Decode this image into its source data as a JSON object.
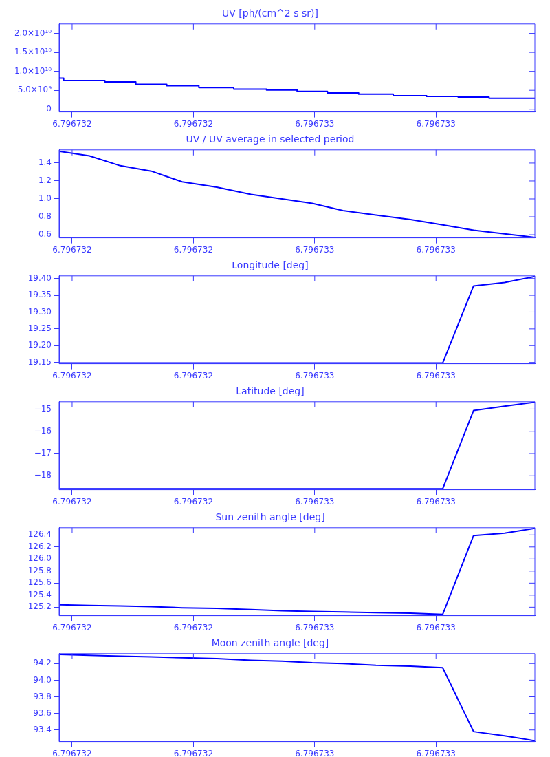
{
  "chart_data": [
    {
      "type": "step",
      "title": "UV [ph/(cm^2 s sr)]",
      "x": [
        6.796731957,
        6.796731972,
        6.796732108,
        6.79673221,
        6.796732312,
        6.796732418,
        6.796732533,
        6.796732641,
        6.796732742,
        6.796732842,
        6.796732945,
        6.796733059,
        6.796733169,
        6.796733273,
        6.796733375,
        6.796733476,
        6.796733526
      ],
      "series": [
        {
          "color": "#0000ff",
          "values": [
            8500000000.0,
            8200000000.0,
            7600000000.0,
            7200000000.0,
            6600000000.0,
            6200000000.0,
            5700000000.0,
            5300000000.0,
            5100000000.0,
            4700000000.0,
            4300000000.0,
            4000000000.0,
            3600000000.0,
            3400000000.0,
            3200000000.0,
            2900000000.0,
            2900000000.0
          ]
        }
      ],
      "xlim": [
        6.796731957,
        6.796733526
      ],
      "xticks": [
        {
          "value": 6.796732,
          "label": "6.796732"
        },
        {
          "value": 6.7967324,
          "label": "6.796732"
        },
        {
          "value": 6.7967328,
          "label": "6.796733"
        },
        {
          "value": 6.7967332,
          "label": "6.796733"
        }
      ],
      "ylim": [
        -700000000.0,
        22500000000.0
      ],
      "yticks": [
        0,
        {
          "value": 5000000000.0,
          "label": "5.0×10⁹"
        },
        {
          "value": 10000000000.0,
          "label": "1.0×10¹⁰"
        },
        {
          "value": 15000000000.0,
          "label": "1.5×10¹⁰"
        },
        {
          "value": 20000000000.0,
          "label": "2.0×10¹⁰"
        }
      ],
      "grid": false,
      "legend": false
    },
    {
      "type": "line",
      "title": "UV / UV average in selected period",
      "x": [
        6.79673196,
        6.796732057,
        6.796732159,
        6.796732261,
        6.796732363,
        6.796732477,
        6.79673259,
        6.796732692,
        6.796732792,
        6.796732893,
        6.796733002,
        6.796733116,
        6.796733222,
        6.796733324,
        6.796733426,
        6.796733526
      ],
      "series": [
        {
          "color": "#0000ff",
          "values": [
            1.53,
            1.48,
            1.37,
            1.31,
            1.19,
            1.13,
            1.05,
            1.0,
            0.95,
            0.87,
            0.82,
            0.77,
            0.71,
            0.65,
            0.61,
            0.57
          ]
        }
      ],
      "xlim": [
        6.796731957,
        6.796733526
      ],
      "xticks": [
        {
          "value": 6.796732,
          "label": "6.796732"
        },
        {
          "value": 6.7967324,
          "label": "6.796732"
        },
        {
          "value": 6.7967328,
          "label": "6.796733"
        },
        {
          "value": 6.7967332,
          "label": "6.796733"
        }
      ],
      "ylim": [
        0.565,
        1.547
      ],
      "yticks": [
        {
          "value": 0.6,
          "label": "0.6"
        },
        {
          "value": 0.8,
          "label": "0.8"
        },
        {
          "value": 1.0,
          "label": "1.0"
        },
        {
          "value": 1.2,
          "label": "1.2"
        },
        {
          "value": 1.4,
          "label": "1.4"
        }
      ],
      "grid": false,
      "legend": false
    },
    {
      "type": "line",
      "title": "Longitude [deg]",
      "x": [
        6.79673196,
        6.796732057,
        6.796732159,
        6.796732261,
        6.796732363,
        6.796732477,
        6.79673259,
        6.796732692,
        6.796732792,
        6.796732893,
        6.796733002,
        6.796733116,
        6.796733222,
        6.796733324,
        6.796733426,
        6.796733526
      ],
      "series": [
        {
          "color": "#0000ff",
          "values": [
            19.148,
            19.148,
            19.148,
            19.148,
            19.148,
            19.148,
            19.148,
            19.148,
            19.148,
            19.148,
            19.148,
            19.148,
            19.148,
            19.378,
            19.388,
            19.406
          ]
        }
      ],
      "xlim": [
        6.796731957,
        6.796733526
      ],
      "xticks": [
        {
          "value": 6.796732,
          "label": "6.796732"
        },
        {
          "value": 6.7967324,
          "label": "6.796732"
        },
        {
          "value": 6.7967328,
          "label": "6.796733"
        },
        {
          "value": 6.7967332,
          "label": "6.796733"
        }
      ],
      "ylim": [
        19.146,
        19.408
      ],
      "yticks": [
        {
          "value": 19.15,
          "label": "19.15"
        },
        {
          "value": 19.2,
          "label": "19.20"
        },
        {
          "value": 19.25,
          "label": "19.25"
        },
        {
          "value": 19.3,
          "label": "19.30"
        },
        {
          "value": 19.35,
          "label": "19.35"
        },
        {
          "value": 19.4,
          "label": "19.40"
        }
      ],
      "grid": false,
      "legend": false
    },
    {
      "type": "line",
      "title": "Latitude [deg]",
      "x": [
        6.79673196,
        6.796732057,
        6.796732159,
        6.796732261,
        6.796732363,
        6.796732477,
        6.79673259,
        6.796732692,
        6.796732792,
        6.796732893,
        6.796733002,
        6.796733116,
        6.796733222,
        6.796733324,
        6.796733426,
        6.796733526
      ],
      "series": [
        {
          "color": "#0000ff",
          "values": [
            -18.59,
            -18.59,
            -18.59,
            -18.59,
            -18.59,
            -18.59,
            -18.59,
            -18.59,
            -18.59,
            -18.59,
            -18.59,
            -18.59,
            -18.59,
            -15.06,
            -14.87,
            -14.69
          ]
        }
      ],
      "xlim": [
        6.796731957,
        6.796733526
      ],
      "xticks": [
        {
          "value": 6.796732,
          "label": "6.796732"
        },
        {
          "value": 6.7967324,
          "label": "6.796732"
        },
        {
          "value": 6.7967328,
          "label": "6.796733"
        },
        {
          "value": 6.7967332,
          "label": "6.796733"
        }
      ],
      "ylim": [
        -18.63,
        -14.67
      ],
      "yticks": [
        {
          "value": -18,
          "label": "−18"
        },
        {
          "value": -17,
          "label": "−17"
        },
        {
          "value": -16,
          "label": "−16"
        },
        {
          "value": -15,
          "label": "−15"
        }
      ],
      "grid": false,
      "legend": false
    },
    {
      "type": "line",
      "title": "Sun zenith angle [deg]",
      "x": [
        6.79673196,
        6.796732057,
        6.796732159,
        6.796732261,
        6.796732363,
        6.796732477,
        6.79673259,
        6.796732692,
        6.796732792,
        6.796732893,
        6.796733002,
        6.796733116,
        6.796733222,
        6.796733324,
        6.796733426,
        6.796733526
      ],
      "series": [
        {
          "color": "#0000ff",
          "values": [
            125.24,
            125.23,
            125.22,
            125.21,
            125.19,
            125.18,
            125.16,
            125.14,
            125.13,
            125.12,
            125.11,
            125.1,
            125.08,
            126.39,
            126.43,
            126.51
          ]
        }
      ],
      "xlim": [
        6.796731957,
        6.796733526
      ],
      "xticks": [
        {
          "value": 6.796732,
          "label": "6.796732"
        },
        {
          "value": 6.7967324,
          "label": "6.796732"
        },
        {
          "value": 6.7967328,
          "label": "6.796733"
        },
        {
          "value": 6.7967332,
          "label": "6.796733"
        }
      ],
      "ylim": [
        125.06,
        126.52
      ],
      "yticks": [
        {
          "value": 125.2,
          "label": "125.2"
        },
        {
          "value": 125.4,
          "label": "125.4"
        },
        {
          "value": 125.6,
          "label": "125.6"
        },
        {
          "value": 125.8,
          "label": "125.8"
        },
        {
          "value": 126.0,
          "label": "126.0"
        },
        {
          "value": 126.2,
          "label": "126.2"
        },
        {
          "value": 126.4,
          "label": "126.4"
        }
      ],
      "grid": false,
      "legend": false
    },
    {
      "type": "line",
      "title": "Moon zenith angle [deg]",
      "x": [
        6.79673196,
        6.796732057,
        6.796732159,
        6.796732261,
        6.796732363,
        6.796732477,
        6.79673259,
        6.796732692,
        6.796732792,
        6.796732893,
        6.796733002,
        6.796733116,
        6.796733222,
        6.796733324,
        6.796733426,
        6.796733526
      ],
      "series": [
        {
          "color": "#0000ff",
          "values": [
            94.31,
            94.3,
            94.29,
            94.28,
            94.27,
            94.26,
            94.24,
            94.23,
            94.21,
            94.2,
            94.18,
            94.17,
            94.15,
            93.38,
            93.33,
            93.27
          ]
        }
      ],
      "xlim": [
        6.796731957,
        6.796733526
      ],
      "xticks": [
        {
          "value": 6.796732,
          "label": "6.796732"
        },
        {
          "value": 6.7967324,
          "label": "6.796732"
        },
        {
          "value": 6.7967328,
          "label": "6.796733"
        },
        {
          "value": 6.7967332,
          "label": "6.796733"
        }
      ],
      "ylim": [
        93.26,
        94.32
      ],
      "yticks": [
        {
          "value": 93.4,
          "label": "93.4"
        },
        {
          "value": 93.6,
          "label": "93.6"
        },
        {
          "value": 93.8,
          "label": "93.8"
        },
        {
          "value": 94.0,
          "label": "94.0"
        },
        {
          "value": 94.2,
          "label": "94.2"
        }
      ],
      "grid": false,
      "legend": false
    }
  ]
}
